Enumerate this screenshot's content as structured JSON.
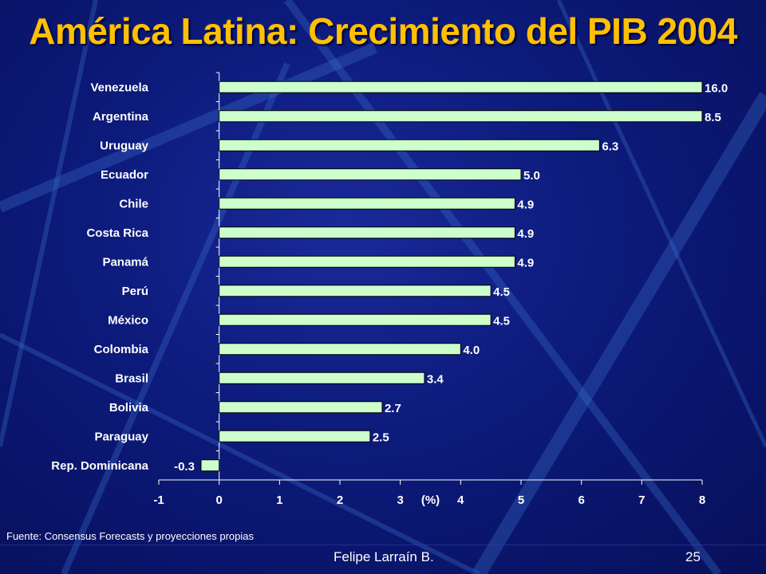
{
  "title": "América Latina: Crecimiento del PIB 2004",
  "source_note": "Fuente: Consensus Forecasts y proyecciones propias",
  "footer": {
    "author": "Felipe Larraín B.",
    "page": "25"
  },
  "chart_data": {
    "type": "bar",
    "orientation": "horizontal",
    "categories": [
      "Venezuela",
      "Argentina",
      "Uruguay",
      "Ecuador",
      "Chile",
      "Costa Rica",
      "Panamá",
      "Perú",
      "México",
      "Colombia",
      "Brasil",
      "Bolivia",
      "Paraguay",
      "Rep. Dominicana"
    ],
    "values": [
      16.0,
      8.5,
      6.3,
      5.0,
      4.9,
      4.9,
      4.9,
      4.5,
      4.5,
      4.0,
      3.4,
      2.7,
      2.5,
      -0.3
    ],
    "value_labels": [
      "16.0",
      "8.5",
      "6.3",
      "5.0",
      "4.9",
      "4.9",
      "4.9",
      "4.5",
      "4.5",
      "4.0",
      "3.4",
      "2.7",
      "2.5",
      "-0.3"
    ],
    "xlim": [
      -1,
      8
    ],
    "xticks": [
      "-1",
      "0",
      "1",
      "2",
      "3",
      "4",
      "5",
      "6",
      "7",
      "8"
    ],
    "xlabel": "(%)",
    "bar_color": "#ccffcc",
    "text_color": "#ffffff",
    "grid": false
  }
}
